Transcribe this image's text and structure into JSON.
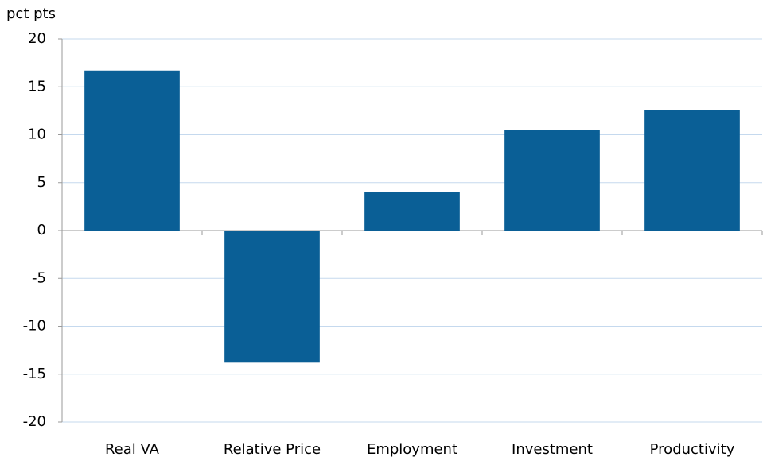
{
  "chart_data": {
    "type": "bar",
    "y_label": "pct pts",
    "categories": [
      "Real VA",
      "Relative Price",
      "Employment",
      "Investment",
      "Productivity"
    ],
    "values": [
      16.7,
      -13.8,
      4.0,
      10.5,
      12.6
    ],
    "color": "#0a5f96",
    "ylim": [
      -20,
      20
    ],
    "yticks": [
      -20,
      -15,
      -10,
      -5,
      0,
      5,
      10,
      15,
      20
    ],
    "grid": true
  }
}
